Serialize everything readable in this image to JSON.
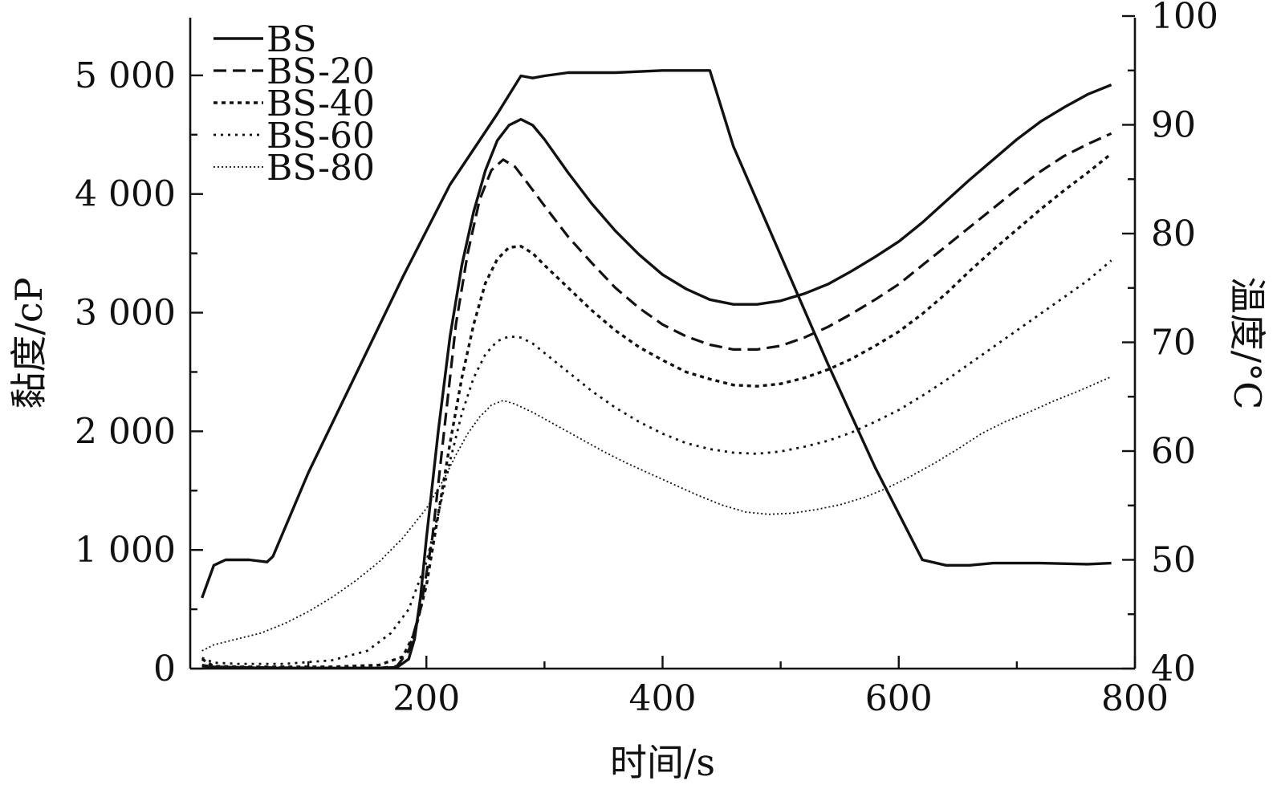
{
  "chart_data": {
    "type": "line",
    "xlabel": "时间/s",
    "ylabel": "黏度/cP",
    "y2label": "温度/°C",
    "xlim": [
      0,
      800
    ],
    "ylim": [
      0,
      5500
    ],
    "y2lim": [
      40,
      100
    ],
    "x_ticks": [
      "200",
      "400",
      "600",
      "800"
    ],
    "y_ticks": [
      "0",
      "1 000",
      "2 000",
      "3 000",
      "4 000",
      "5 000"
    ],
    "y2_ticks": [
      "40",
      "50",
      "60",
      "70",
      "80",
      "90",
      "100"
    ],
    "legend_position": "top-left",
    "series": [
      {
        "name": "BS",
        "style": "solid",
        "axis": "left",
        "points": [
          [
            10,
            20
          ],
          [
            20,
            15
          ],
          [
            40,
            10
          ],
          [
            60,
            5
          ],
          [
            100,
            5
          ],
          [
            140,
            5
          ],
          [
            160,
            5
          ],
          [
            175,
            10
          ],
          [
            185,
            80
          ],
          [
            190,
            250
          ],
          [
            195,
            600
          ],
          [
            200,
            1100
          ],
          [
            210,
            2000
          ],
          [
            220,
            2800
          ],
          [
            230,
            3400
          ],
          [
            240,
            3850
          ],
          [
            250,
            4200
          ],
          [
            260,
            4450
          ],
          [
            270,
            4580
          ],
          [
            280,
            4630
          ],
          [
            290,
            4580
          ],
          [
            300,
            4460
          ],
          [
            320,
            4180
          ],
          [
            340,
            3920
          ],
          [
            360,
            3690
          ],
          [
            380,
            3490
          ],
          [
            400,
            3320
          ],
          [
            420,
            3200
          ],
          [
            440,
            3110
          ],
          [
            460,
            3070
          ],
          [
            480,
            3070
          ],
          [
            500,
            3100
          ],
          [
            520,
            3160
          ],
          [
            540,
            3240
          ],
          [
            560,
            3350
          ],
          [
            580,
            3470
          ],
          [
            600,
            3600
          ],
          [
            620,
            3760
          ],
          [
            640,
            3940
          ],
          [
            660,
            4120
          ],
          [
            680,
            4290
          ],
          [
            700,
            4460
          ],
          [
            720,
            4610
          ],
          [
            740,
            4730
          ],
          [
            760,
            4840
          ],
          [
            780,
            4920
          ]
        ]
      },
      {
        "name": "BS-20",
        "style": "dash",
        "axis": "left",
        "points": [
          [
            10,
            30
          ],
          [
            20,
            12
          ],
          [
            40,
            10
          ],
          [
            80,
            8
          ],
          [
            120,
            5
          ],
          [
            160,
            5
          ],
          [
            175,
            20
          ],
          [
            185,
            150
          ],
          [
            195,
            500
          ],
          [
            205,
            1100
          ],
          [
            215,
            2000
          ],
          [
            225,
            2900
          ],
          [
            235,
            3500
          ],
          [
            245,
            3950
          ],
          [
            255,
            4200
          ],
          [
            265,
            4290
          ],
          [
            275,
            4230
          ],
          [
            285,
            4100
          ],
          [
            300,
            3900
          ],
          [
            320,
            3640
          ],
          [
            340,
            3420
          ],
          [
            360,
            3210
          ],
          [
            380,
            3040
          ],
          [
            400,
            2900
          ],
          [
            420,
            2800
          ],
          [
            440,
            2730
          ],
          [
            460,
            2690
          ],
          [
            480,
            2690
          ],
          [
            500,
            2720
          ],
          [
            520,
            2790
          ],
          [
            540,
            2880
          ],
          [
            560,
            2990
          ],
          [
            580,
            3110
          ],
          [
            600,
            3240
          ],
          [
            620,
            3400
          ],
          [
            640,
            3560
          ],
          [
            660,
            3720
          ],
          [
            680,
            3880
          ],
          [
            700,
            4040
          ],
          [
            720,
            4190
          ],
          [
            740,
            4320
          ],
          [
            760,
            4420
          ],
          [
            780,
            4510
          ]
        ]
      },
      {
        "name": "BS-40",
        "style": "dot",
        "axis": "left",
        "points": [
          [
            10,
            80
          ],
          [
            20,
            20
          ],
          [
            40,
            15
          ],
          [
            80,
            15
          ],
          [
            120,
            15
          ],
          [
            160,
            30
          ],
          [
            180,
            100
          ],
          [
            190,
            300
          ],
          [
            200,
            700
          ],
          [
            210,
            1300
          ],
          [
            220,
            1900
          ],
          [
            230,
            2450
          ],
          [
            240,
            2900
          ],
          [
            250,
            3250
          ],
          [
            260,
            3450
          ],
          [
            270,
            3550
          ],
          [
            280,
            3560
          ],
          [
            290,
            3500
          ],
          [
            300,
            3400
          ],
          [
            320,
            3210
          ],
          [
            340,
            3020
          ],
          [
            360,
            2850
          ],
          [
            380,
            2710
          ],
          [
            400,
            2600
          ],
          [
            420,
            2500
          ],
          [
            440,
            2440
          ],
          [
            460,
            2390
          ],
          [
            480,
            2380
          ],
          [
            500,
            2400
          ],
          [
            520,
            2450
          ],
          [
            540,
            2520
          ],
          [
            560,
            2610
          ],
          [
            580,
            2720
          ],
          [
            600,
            2840
          ],
          [
            620,
            2990
          ],
          [
            640,
            3160
          ],
          [
            660,
            3350
          ],
          [
            680,
            3530
          ],
          [
            700,
            3700
          ],
          [
            720,
            3870
          ],
          [
            740,
            4030
          ],
          [
            760,
            4180
          ],
          [
            780,
            4340
          ]
        ]
      },
      {
        "name": "BS-60",
        "style": "sparse-dot",
        "axis": "left",
        "points": [
          [
            10,
            90
          ],
          [
            20,
            50
          ],
          [
            40,
            40
          ],
          [
            80,
            40
          ],
          [
            120,
            70
          ],
          [
            150,
            150
          ],
          [
            170,
            300
          ],
          [
            185,
            500
          ],
          [
            200,
            900
          ],
          [
            210,
            1300
          ],
          [
            220,
            1750
          ],
          [
            230,
            2150
          ],
          [
            240,
            2450
          ],
          [
            250,
            2650
          ],
          [
            260,
            2760
          ],
          [
            270,
            2800
          ],
          [
            280,
            2790
          ],
          [
            290,
            2740
          ],
          [
            300,
            2660
          ],
          [
            320,
            2500
          ],
          [
            340,
            2340
          ],
          [
            360,
            2200
          ],
          [
            380,
            2080
          ],
          [
            400,
            1980
          ],
          [
            420,
            1900
          ],
          [
            440,
            1850
          ],
          [
            460,
            1820
          ],
          [
            480,
            1810
          ],
          [
            500,
            1830
          ],
          [
            520,
            1870
          ],
          [
            540,
            1920
          ],
          [
            560,
            1990
          ],
          [
            580,
            2080
          ],
          [
            600,
            2180
          ],
          [
            620,
            2300
          ],
          [
            640,
            2430
          ],
          [
            660,
            2570
          ],
          [
            680,
            2710
          ],
          [
            700,
            2850
          ],
          [
            720,
            2990
          ],
          [
            740,
            3130
          ],
          [
            760,
            3270
          ],
          [
            780,
            3440
          ]
        ]
      },
      {
        "name": "BS-80",
        "style": "fine-dot",
        "axis": "left",
        "points": [
          [
            10,
            150
          ],
          [
            20,
            200
          ],
          [
            40,
            250
          ],
          [
            60,
            300
          ],
          [
            80,
            380
          ],
          [
            100,
            480
          ],
          [
            120,
            600
          ],
          [
            140,
            740
          ],
          [
            160,
            900
          ],
          [
            180,
            1100
          ],
          [
            200,
            1350
          ],
          [
            215,
            1600
          ],
          [
            225,
            1800
          ],
          [
            235,
            1980
          ],
          [
            245,
            2120
          ],
          [
            255,
            2220
          ],
          [
            265,
            2260
          ],
          [
            275,
            2230
          ],
          [
            290,
            2160
          ],
          [
            310,
            2050
          ],
          [
            330,
            1940
          ],
          [
            350,
            1830
          ],
          [
            370,
            1730
          ],
          [
            390,
            1640
          ],
          [
            410,
            1550
          ],
          [
            430,
            1460
          ],
          [
            450,
            1380
          ],
          [
            470,
            1320
          ],
          [
            490,
            1300
          ],
          [
            510,
            1310
          ],
          [
            530,
            1340
          ],
          [
            550,
            1380
          ],
          [
            570,
            1440
          ],
          [
            590,
            1520
          ],
          [
            610,
            1620
          ],
          [
            630,
            1730
          ],
          [
            650,
            1850
          ],
          [
            670,
            1980
          ],
          [
            690,
            2080
          ],
          [
            710,
            2160
          ],
          [
            730,
            2250
          ],
          [
            750,
            2330
          ],
          [
            780,
            2460
          ]
        ]
      },
      {
        "name": "",
        "style": "solid",
        "axis": "right",
        "points": [
          [
            10,
            46.5
          ],
          [
            20,
            49.5
          ],
          [
            30,
            50.0
          ],
          [
            50,
            50.0
          ],
          [
            65,
            49.8
          ],
          [
            70,
            50.3
          ],
          [
            100,
            58.0
          ],
          [
            140,
            67.0
          ],
          [
            180,
            76.0
          ],
          [
            220,
            84.5
          ],
          [
            260,
            91.0
          ],
          [
            280,
            94.5
          ],
          [
            290,
            94.3
          ],
          [
            300,
            94.5
          ],
          [
            320,
            94.8
          ],
          [
            360,
            94.8
          ],
          [
            400,
            95.0
          ],
          [
            440,
            95.0
          ],
          [
            460,
            88.0
          ],
          [
            500,
            78.0
          ],
          [
            540,
            68.0
          ],
          [
            580,
            58.5
          ],
          [
            620,
            50.0
          ],
          [
            640,
            49.5
          ],
          [
            660,
            49.5
          ],
          [
            680,
            49.7
          ],
          [
            720,
            49.7
          ],
          [
            760,
            49.6
          ],
          [
            780,
            49.7
          ]
        ]
      }
    ]
  }
}
